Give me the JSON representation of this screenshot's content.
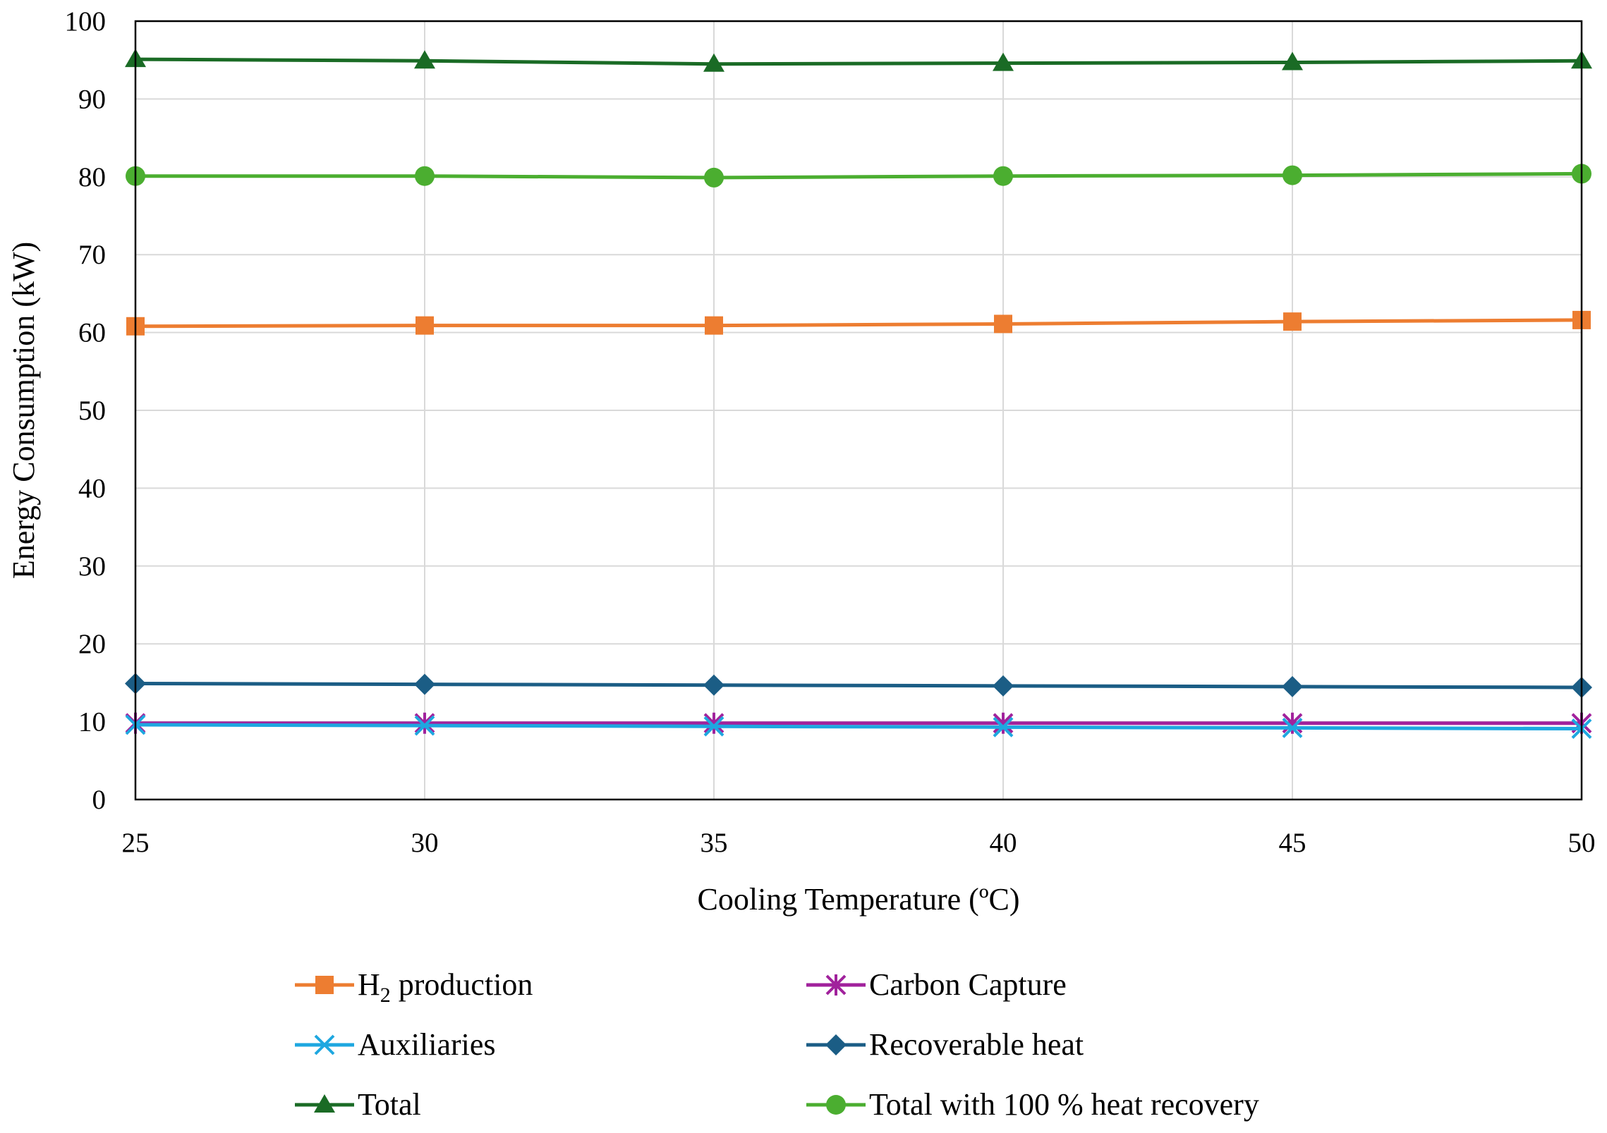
{
  "chart_data": {
    "type": "line",
    "title": "",
    "xlabel": "Cooling Temperature (ºC)",
    "ylabel": "Energy Consumption (kW)",
    "x": [
      25,
      30,
      35,
      40,
      45,
      50
    ],
    "xticks": [
      "25",
      "30",
      "35",
      "40",
      "45",
      "50"
    ],
    "xlim": [
      25,
      50
    ],
    "ylim": [
      0,
      100
    ],
    "yticks": [
      "0",
      "10",
      "20",
      "30",
      "40",
      "50",
      "60",
      "70",
      "80",
      "90",
      "100"
    ],
    "grid": true,
    "legend_position": "bottom",
    "series": [
      {
        "name": "H₂ production",
        "legend_label": "production",
        "legend_subscript": "2",
        "legend_prefix": "H",
        "color": "#ED7D31",
        "marker": "square",
        "values": [
          60.8,
          60.9,
          60.9,
          61.1,
          61.4,
          61.6
        ]
      },
      {
        "name": "Carbon Capture",
        "legend_label": "Carbon Capture",
        "color": "#A1229C",
        "marker": "star",
        "values": [
          9.8,
          9.8,
          9.8,
          9.8,
          9.8,
          9.8
        ]
      },
      {
        "name": "Auxiliaries",
        "legend_label": "Auxiliaries",
        "color": "#1EA7E0",
        "marker": "x",
        "values": [
          9.6,
          9.5,
          9.4,
          9.3,
          9.2,
          9.1
        ]
      },
      {
        "name": "Recoverable heat",
        "legend_label": "Recoverable heat",
        "color": "#1B5D85",
        "marker": "diamond",
        "values": [
          14.9,
          14.8,
          14.7,
          14.6,
          14.5,
          14.4
        ]
      },
      {
        "name": "Total",
        "legend_label": "Total",
        "color": "#1A6B25",
        "marker": "triangle",
        "values": [
          95.1,
          94.9,
          94.5,
          94.6,
          94.7,
          94.9
        ]
      },
      {
        "name": "Total with 100 % heat recovery",
        "legend_label": "Total with 100 % heat recovery",
        "color": "#4BAE30",
        "marker": "circle",
        "values": [
          80.1,
          80.1,
          79.9,
          80.1,
          80.2,
          80.4
        ]
      }
    ]
  }
}
